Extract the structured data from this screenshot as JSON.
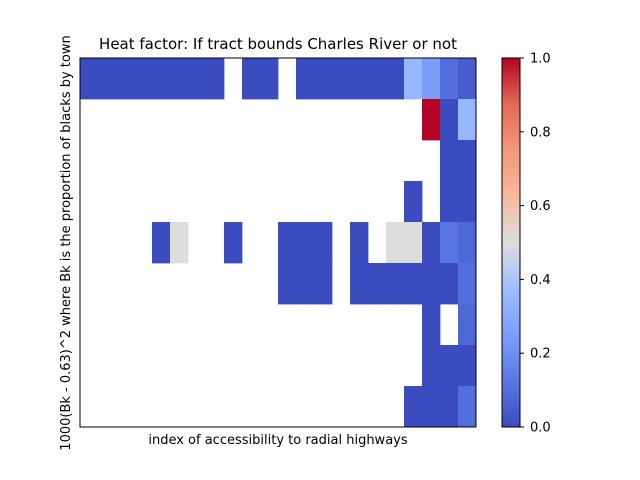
{
  "chart_data": {
    "type": "heatmap",
    "title": "Heat factor: If tract bounds Charles River or not",
    "xlabel": "index of accessibility to radial highways",
    "ylabel": "1000(Bk - 0.63)^2 where Bk is the proportion of blacks by town",
    "x_ticks_shown": false,
    "y_ticks_shown": false,
    "n_cols": 22,
    "n_rows": 9,
    "colormap": "coolwarm",
    "value_range": [
      0,
      1
    ],
    "colorbar_ticks": [
      "0.0",
      "0.2",
      "0.4",
      "0.6",
      "0.8",
      "1.0"
    ],
    "colorbar_tick_values": [
      0,
      0.2,
      0.4,
      0.6,
      0.8,
      1.0
    ],
    "cells_note": "row 0 = top row; null = empty (white)",
    "values": [
      [
        0,
        0,
        0,
        0,
        0,
        0,
        0,
        0,
        null,
        0,
        0,
        null,
        0,
        0,
        0,
        0,
        0,
        0,
        0.35,
        0.25,
        0.1,
        0.05
      ],
      [
        null,
        null,
        null,
        null,
        null,
        null,
        null,
        null,
        null,
        null,
        null,
        null,
        null,
        null,
        null,
        null,
        null,
        null,
        null,
        1.0,
        0.0,
        0.35
      ],
      [
        null,
        null,
        null,
        null,
        null,
        null,
        null,
        null,
        null,
        null,
        null,
        null,
        null,
        null,
        null,
        null,
        null,
        null,
        null,
        null,
        0.0,
        0.0
      ],
      [
        null,
        null,
        null,
        null,
        null,
        null,
        null,
        null,
        null,
        null,
        null,
        null,
        null,
        null,
        null,
        null,
        null,
        null,
        0.0,
        null,
        0.0,
        0.0
      ],
      [
        null,
        null,
        null,
        null,
        0.0,
        0.5,
        null,
        null,
        0.0,
        null,
        null,
        0.0,
        0.0,
        0.0,
        null,
        0.0,
        null,
        0.5,
        0.5,
        0.0,
        0.12,
        0.08
      ],
      [
        null,
        null,
        null,
        null,
        null,
        null,
        null,
        null,
        null,
        null,
        null,
        0.0,
        0.0,
        0.0,
        null,
        0.0,
        0.0,
        0.0,
        0.0,
        0.0,
        0.0,
        0.1
      ],
      [
        null,
        null,
        null,
        null,
        null,
        null,
        null,
        null,
        null,
        null,
        null,
        null,
        null,
        null,
        null,
        null,
        null,
        null,
        null,
        0.0,
        null,
        0.08
      ],
      [
        null,
        null,
        null,
        null,
        null,
        null,
        null,
        null,
        null,
        null,
        null,
        null,
        null,
        null,
        null,
        null,
        null,
        null,
        null,
        0.0,
        0.0,
        0.0
      ],
      [
        null,
        null,
        null,
        null,
        null,
        null,
        null,
        null,
        null,
        null,
        null,
        null,
        null,
        null,
        null,
        null,
        null,
        null,
        0.0,
        0.0,
        0.0,
        0.1
      ]
    ]
  }
}
